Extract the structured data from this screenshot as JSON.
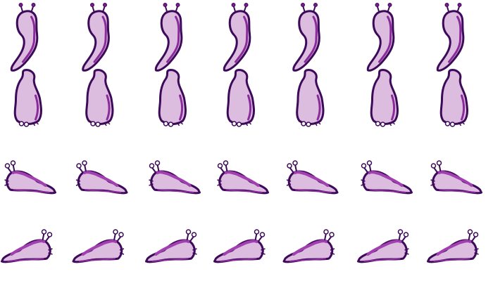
{
  "sprite_sheet": {
    "subject": "slug",
    "frames_per_row": 7,
    "rows": [
      {
        "direction": "up",
        "pose": "head-top"
      },
      {
        "direction": "down",
        "pose": "head-bottom"
      },
      {
        "direction": "right",
        "pose": "head-right"
      },
      {
        "direction": "left",
        "pose": "head-left"
      }
    ]
  },
  "colors": {
    "outline": "#3d0a5a",
    "body": "#dcbde0",
    "shade": "#8b2a9a",
    "highlight": "#a13fb0",
    "background": "#ffffff"
  }
}
